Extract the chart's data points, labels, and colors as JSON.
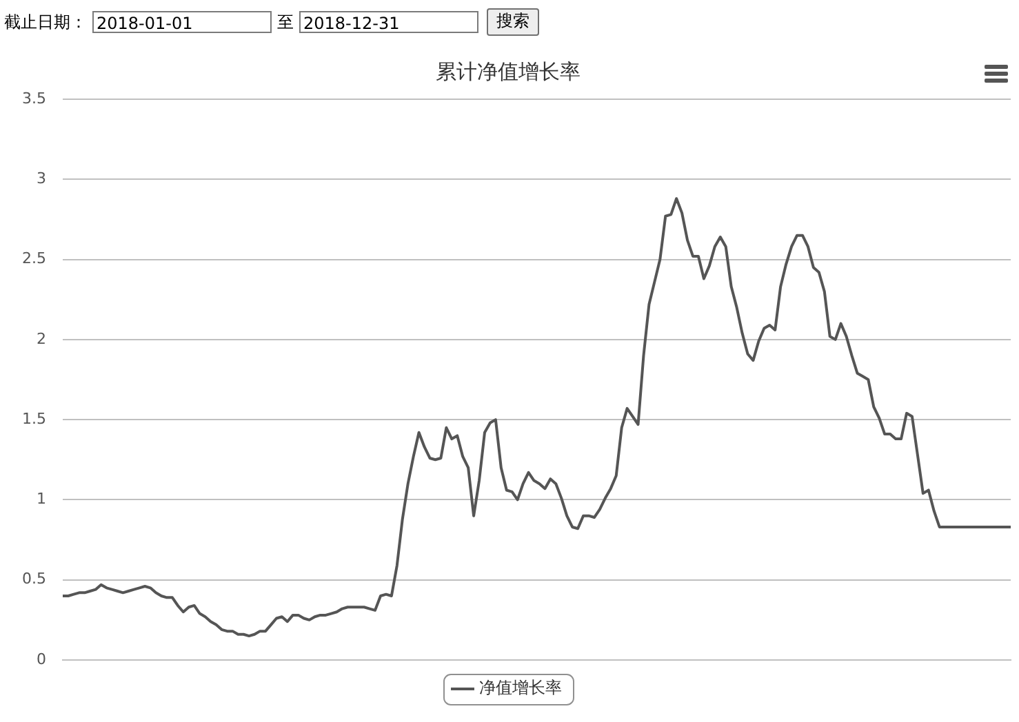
{
  "chart_data": {
    "type": "line",
    "title": "累计净值增长率",
    "annotations": [
      "截止日期：",
      "2018-01-01",
      "至",
      "2018-12-31",
      "搜索"
    ],
    "categories": [
      null,
      null,
      null,
      null,
      null,
      null,
      null,
      null,
      null,
      null,
      null,
      null,
      null,
      null,
      null,
      null,
      null,
      null,
      null,
      null,
      null,
      null,
      null,
      null,
      null,
      null,
      null,
      null,
      null,
      null,
      null,
      null,
      null,
      null,
      null,
      null,
      null,
      null,
      null,
      null,
      null,
      null,
      null,
      null,
      null,
      null,
      null,
      null,
      null,
      null,
      null,
      null,
      null,
      null,
      null,
      null,
      null,
      null,
      null,
      null,
      null,
      null,
      null,
      null,
      null,
      null,
      null,
      null,
      null,
      null,
      null,
      null,
      null,
      null,
      null,
      null,
      null,
      null,
      null,
      null,
      null,
      null,
      null,
      null,
      null,
      null,
      null,
      null,
      null,
      null,
      null,
      null,
      null,
      null,
      null,
      null,
      null,
      null,
      null,
      null,
      null,
      null,
      null,
      null,
      null,
      null,
      null,
      null,
      null,
      null,
      null,
      null,
      null,
      null,
      null,
      null,
      null,
      null,
      null,
      null,
      null,
      null,
      null,
      null,
      null,
      null,
      null,
      null,
      null,
      null,
      null,
      null,
      null,
      null,
      null,
      null,
      null,
      null,
      null,
      null,
      null,
      null,
      null,
      null,
      null,
      null,
      null,
      null,
      null,
      null,
      null,
      null,
      null,
      null,
      null,
      null,
      null,
      null,
      null,
      null,
      null,
      null,
      null,
      null,
      null,
      null,
      null,
      null,
      null,
      null,
      null,
      null,
      null,
      null
    ],
    "series": [
      {
        "name": "净值增长率",
        "color": "#555555",
        "values": [
          0.4,
          0.4,
          0.41,
          0.42,
          0.42,
          0.43,
          0.44,
          0.47,
          0.45,
          0.44,
          0.43,
          0.42,
          0.43,
          0.44,
          0.45,
          0.46,
          0.45,
          0.42,
          0.4,
          0.39,
          0.39,
          0.34,
          0.3,
          0.33,
          0.34,
          0.29,
          0.27,
          0.24,
          0.22,
          0.19,
          0.18,
          0.18,
          0.16,
          0.16,
          0.15,
          0.16,
          0.18,
          0.18,
          0.22,
          0.26,
          0.27,
          0.24,
          0.28,
          0.28,
          0.26,
          0.25,
          0.27,
          0.28,
          0.28,
          0.29,
          0.3,
          0.32,
          0.33,
          0.33,
          0.33,
          0.33,
          0.32,
          0.31,
          0.4,
          0.41,
          0.4,
          0.59,
          0.88,
          1.1,
          1.27,
          1.42,
          1.33,
          1.26,
          1.25,
          1.26,
          1.45,
          1.38,
          1.4,
          1.27,
          1.2,
          0.9,
          1.12,
          1.42,
          1.48,
          1.5,
          1.2,
          1.06,
          1.05,
          1.0,
          1.1,
          1.17,
          1.12,
          1.1,
          1.07,
          1.13,
          1.1,
          1.01,
          0.9,
          0.83,
          0.82,
          0.9,
          0.9,
          0.89,
          0.94,
          1.01,
          1.07,
          1.15,
          1.45,
          1.57,
          1.52,
          1.47,
          1.9,
          2.22,
          2.36,
          2.5,
          2.77,
          2.78,
          2.88,
          2.79,
          2.62,
          2.52,
          2.52,
          2.38,
          2.46,
          2.58,
          2.64,
          2.58,
          2.33,
          2.2,
          2.04,
          1.91,
          1.87,
          1.99,
          2.07,
          2.09,
          2.06,
          2.33,
          2.47,
          2.58,
          2.65,
          2.65,
          2.58,
          2.45,
          2.42,
          2.3,
          2.02,
          2.0,
          2.1,
          2.02,
          1.9,
          1.79,
          1.77,
          1.75,
          1.58,
          1.51,
          1.41,
          1.41,
          1.38,
          1.38,
          1.54,
          1.52,
          1.28,
          1.04,
          1.06,
          0.93,
          0.83,
          0.83,
          0.83,
          0.83,
          0.83,
          0.83,
          0.83,
          0.83,
          0.83,
          0.83,
          0.83,
          0.83,
          0.83,
          0.83
        ]
      }
    ],
    "ylim": [
      0,
      3.5
    ],
    "yticks": [
      0,
      0.5,
      1,
      1.5,
      2,
      2.5,
      3,
      3.5
    ],
    "grid": "y",
    "legend": "bottom",
    "tick_labels": "y",
    "marker": "none",
    "line_style": "solid"
  }
}
